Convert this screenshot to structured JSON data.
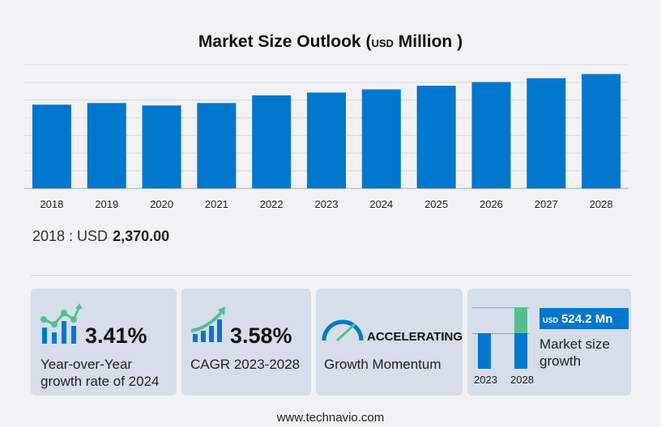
{
  "title": {
    "main": "Market Size Outlook",
    "open": "(",
    "unit_prefix": "USD",
    "unit": "Million",
    "close": ")"
  },
  "chart_data": {
    "type": "bar",
    "title": "Market Size Outlook (USD Million)",
    "categories": [
      "2018",
      "2019",
      "2020",
      "2021",
      "2022",
      "2023",
      "2024",
      "2025",
      "2026",
      "2027",
      "2028"
    ],
    "values": [
      2370,
      2416,
      2347,
      2416,
      2632,
      2712,
      2804,
      2905,
      3009,
      3117,
      3236
    ],
    "ylim": [
      0,
      3500
    ],
    "grid": true,
    "bar_color": "#0077cc"
  },
  "summary": {
    "year_label": "2018 : USD",
    "value": "2,370.00"
  },
  "cards": {
    "yoy": {
      "value": "3.41%",
      "label1": "Year-over-Year",
      "label2": "growth rate of 2024"
    },
    "cagr": {
      "value": "3.58%",
      "label": "CAGR  2023-2028"
    },
    "momentum": {
      "value": "ACCELERATING",
      "label": "Growth Momentum"
    },
    "growth": {
      "unit": "USD",
      "value": "524.2 Mn",
      "label1": "Market size",
      "label2": "growth",
      "year_start": "2023",
      "year_end": "2028",
      "blue": "#0077cc",
      "green": "#52bf90"
    }
  },
  "footer": "www.technavio.com"
}
